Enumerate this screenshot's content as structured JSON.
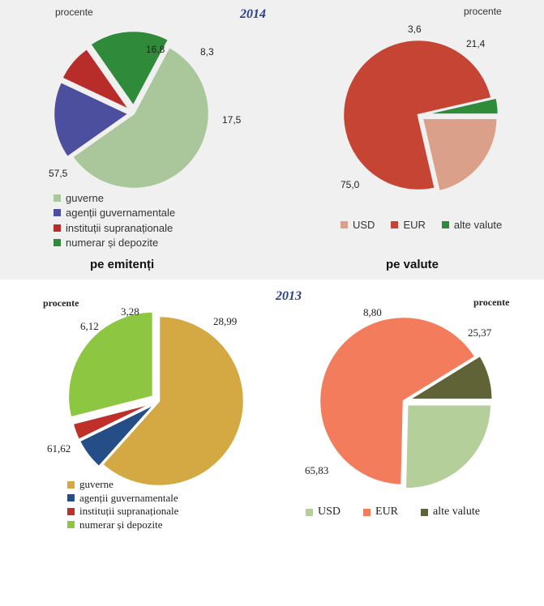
{
  "chart_data": [
    {
      "type": "pie",
      "title": "2014",
      "unit_label": "procente",
      "subtitle": "pe emitenți",
      "categories": [
        "guverne",
        "agenții guvernamentale",
        "instituții supranaționale",
        "numerar și depozite"
      ],
      "values": [
        57.5,
        16.8,
        8.3,
        17.5
      ],
      "value_labels": [
        "57,5",
        "16,8",
        "8,3",
        "17,5"
      ],
      "colors": [
        "#a9c79b",
        "#4c4e9e",
        "#b82d2a",
        "#2f8a3a"
      ],
      "legend": "bottom"
    },
    {
      "type": "pie",
      "title": "2014",
      "unit_label": "procente",
      "subtitle": "pe valute",
      "categories": [
        "USD",
        "EUR",
        "alte valute"
      ],
      "values": [
        21.4,
        75.0,
        3.6
      ],
      "value_labels": [
        "21,4",
        "75,0",
        "3,6"
      ],
      "colors": [
        "#dba08a",
        "#c64434",
        "#2f8a3a"
      ],
      "legend": "bottom"
    },
    {
      "type": "pie",
      "title": "2013",
      "unit_label": "procente",
      "categories": [
        "guverne",
        "agenții guvernamentale",
        "instituții supranaționale",
        "numerar și depozite"
      ],
      "values": [
        61.62,
        6.12,
        3.28,
        28.99
      ],
      "value_labels": [
        "61,62",
        "6,12",
        "3,28",
        "28,99"
      ],
      "colors": [
        "#d4a843",
        "#254e86",
        "#c0302a",
        "#8dc641"
      ],
      "legend": "bottom"
    },
    {
      "type": "pie",
      "title": "2013",
      "unit_label": "procente",
      "categories": [
        "USD",
        "EUR",
        "alte valute"
      ],
      "values": [
        25.37,
        65.83,
        8.8
      ],
      "value_labels": [
        "25,37",
        "65,83",
        "8,80"
      ],
      "colors": [
        "#b5cf9a",
        "#f27c5b",
        "#5f6335"
      ],
      "legend": "bottom"
    }
  ]
}
